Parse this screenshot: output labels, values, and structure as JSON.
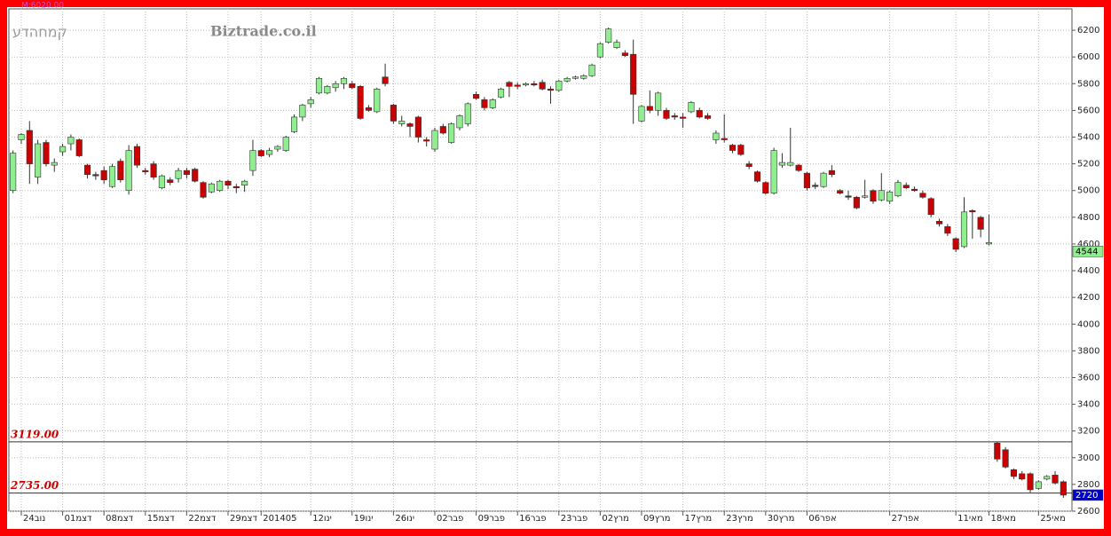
{
  "chart_data": {
    "type": "candlestick",
    "title": "קמחהדע",
    "subtitle": "Biztrade.co.il",
    "annotation": "M:6020.00",
    "categories": [
      null,
      "24נוב",
      null,
      null,
      null,
      null,
      "01דצמ",
      null,
      null,
      null,
      null,
      "08דצמ",
      null,
      null,
      null,
      null,
      "15דצמ",
      null,
      null,
      null,
      null,
      "22דצמ",
      null,
      null,
      null,
      null,
      "29דצמ",
      null,
      null,
      null,
      "201405",
      null,
      null,
      null,
      null,
      null,
      "12ינו",
      null,
      null,
      null,
      null,
      "19ינו",
      null,
      null,
      null,
      null,
      "26ינו",
      null,
      null,
      null,
      null,
      "02פבר",
      null,
      null,
      null,
      null,
      "09פבר",
      null,
      null,
      null,
      null,
      "16פבר",
      null,
      null,
      null,
      null,
      "23פבר",
      null,
      null,
      null,
      null,
      "02מרץ",
      null,
      null,
      null,
      null,
      "09מרץ",
      null,
      null,
      null,
      null,
      "17מרץ",
      null,
      null,
      null,
      null,
      "23מרץ",
      null,
      null,
      null,
      null,
      "30מרץ",
      null,
      null,
      null,
      null,
      "06אפר",
      null,
      null,
      null,
      null,
      null,
      null,
      null,
      null,
      null,
      "27אפר",
      null,
      null,
      null,
      null,
      null,
      null,
      null,
      "11מאי",
      null,
      null,
      null,
      "18מאי",
      null,
      null,
      null,
      null,
      null,
      "25מאי",
      null,
      null,
      null
    ],
    "open": [
      5000,
      5380,
      5450,
      5100,
      5360,
      5190,
      5290,
      5350,
      5380,
      5190,
      5120,
      5150,
      5030,
      5220,
      5000,
      5330,
      5150,
      5200,
      5020,
      5080,
      5090,
      5150,
      5160,
      5060,
      4990,
      5000,
      5070,
      5030,
      5040,
      5150,
      5300,
      5270,
      5310,
      5300,
      5440,
      5550,
      5650,
      5730,
      5730,
      5770,
      5800,
      5800,
      5780,
      5620,
      5590,
      5850,
      5640,
      5500,
      5500,
      5550,
      5380,
      5310,
      5480,
      5360,
      5470,
      5500,
      5720,
      5680,
      5620,
      5700,
      5810,
      5790,
      5790,
      5800,
      5810,
      5760,
      5750,
      5820,
      5840,
      5840,
      5860,
      6000,
      6110,
      6070,
      6030,
      6020,
      5520,
      5630,
      5600,
      5600,
      5560,
      5550,
      5590,
      5600,
      5560,
      5380,
      5390,
      5340,
      5340,
      5200,
      5140,
      5060,
      4980,
      5190,
      5190,
      5190,
      5130,
      5040,
      5030,
      5150,
      5000,
      4960,
      4950,
      4950,
      5000,
      4930,
      4920,
      4960,
      5040,
      5010,
      4980,
      4940,
      4770,
      4730,
      4640,
      4580,
      4850,
      4800,
      4600,
      3110,
      3060,
      2910,
      2880,
      2880,
      2770,
      2840,
      2870,
      2820
    ],
    "high": [
      5300,
      5430,
      5520,
      5380,
      5380,
      5240,
      5350,
      5420,
      5390,
      5200,
      5140,
      5180,
      5200,
      5240,
      5340,
      5350,
      5170,
      5220,
      5120,
      5100,
      5170,
      5170,
      5170,
      5070,
      5060,
      5080,
      5080,
      5050,
      5080,
      5380,
      5310,
      5320,
      5340,
      5410,
      5570,
      5650,
      5700,
      5850,
      5790,
      5820,
      5850,
      5820,
      5790,
      5640,
      5770,
      5950,
      5650,
      5560,
      5510,
      5560,
      5400,
      5470,
      5500,
      5510,
      5570,
      5660,
      5740,
      5700,
      5690,
      5770,
      5820,
      5810,
      5810,
      5820,
      5830,
      5780,
      5830,
      5850,
      5860,
      5870,
      5950,
      6110,
      6220,
      6130,
      6050,
      6130,
      5640,
      5750,
      5740,
      5620,
      5580,
      5580,
      5670,
      5620,
      5580,
      5450,
      5570,
      5350,
      5350,
      5220,
      5150,
      5070,
      5320,
      5280,
      5470,
      5200,
      5140,
      5060,
      5140,
      5190,
      5010,
      5000,
      4960,
      5080,
      5010,
      5130,
      5000,
      5080,
      5060,
      5030,
      5000,
      4950,
      4790,
      4750,
      4650,
      4950,
      4860,
      4810,
      4820,
      3120,
      3080,
      2920,
      2900,
      2890,
      2830,
      2870,
      2900,
      2830
    ],
    "low": [
      4980,
      5350,
      5050,
      5050,
      5180,
      5140,
      5260,
      5300,
      5250,
      5090,
      5080,
      5050,
      5020,
      5060,
      4970,
      5170,
      5120,
      5080,
      5010,
      5040,
      5060,
      5090,
      5060,
      4940,
      4980,
      4990,
      5010,
      4980,
      4990,
      5110,
      5250,
      5250,
      5290,
      5290,
      5430,
      5520,
      5620,
      5720,
      5720,
      5740,
      5760,
      5760,
      5530,
      5590,
      5580,
      5780,
      5500,
      5480,
      5400,
      5360,
      5330,
      5290,
      5420,
      5350,
      5450,
      5480,
      5680,
      5600,
      5610,
      5690,
      5700,
      5760,
      5780,
      5780,
      5750,
      5650,
      5740,
      5810,
      5830,
      5830,
      5850,
      5990,
      6100,
      6060,
      6000,
      5500,
      5510,
      5580,
      5560,
      5530,
      5530,
      5470,
      5580,
      5540,
      5530,
      5350,
      5360,
      5280,
      5260,
      5160,
      5060,
      4970,
      4970,
      5170,
      5180,
      5140,
      5000,
      5010,
      5020,
      5100,
      4970,
      4930,
      4860,
      4940,
      4900,
      4920,
      4900,
      4950,
      5010,
      4990,
      4940,
      4800,
      4730,
      4660,
      4540,
      4570,
      4640,
      4650,
      4590,
      2970,
      2920,
      2840,
      2830,
      2740,
      2760,
      2830,
      2800,
      2700
    ],
    "close": [
      5280,
      5420,
      5200,
      5350,
      5200,
      5210,
      5330,
      5400,
      5260,
      5120,
      5110,
      5080,
      5180,
      5080,
      5300,
      5190,
      5140,
      5100,
      5110,
      5060,
      5150,
      5120,
      5070,
      4950,
      5050,
      5070,
      5040,
      5020,
      5070,
      5300,
      5260,
      5300,
      5330,
      5400,
      5550,
      5640,
      5680,
      5840,
      5780,
      5800,
      5840,
      5770,
      5540,
      5600,
      5760,
      5800,
      5520,
      5520,
      5480,
      5400,
      5370,
      5450,
      5430,
      5500,
      5560,
      5650,
      5690,
      5620,
      5680,
      5760,
      5780,
      5780,
      5800,
      5790,
      5760,
      5750,
      5820,
      5840,
      5850,
      5860,
      5940,
      6100,
      6210,
      6110,
      6010,
      5720,
      5630,
      5600,
      5730,
      5540,
      5550,
      5540,
      5660,
      5550,
      5540,
      5430,
      5380,
      5300,
      5270,
      5180,
      5070,
      4980,
      5300,
      5210,
      5210,
      5150,
      5020,
      5030,
      5130,
      5120,
      4980,
      4950,
      4870,
      4960,
      4920,
      5000,
      4990,
      5060,
      5020,
      5000,
      4950,
      4820,
      4750,
      4680,
      4560,
      4840,
      4840,
      4710,
      4610,
      2990,
      2930,
      2860,
      2840,
      2760,
      2820,
      2860,
      2810,
      2720
    ],
    "up_color": "#90ee90",
    "down_color": "#cc0000",
    "ylim": [
      2600,
      6360
    ],
    "yticks": [
      2600,
      2800,
      3000,
      3200,
      3400,
      3600,
      3800,
      4000,
      4200,
      4400,
      4600,
      4800,
      5000,
      5200,
      5400,
      5600,
      5800,
      6000,
      6200
    ],
    "grid": true,
    "levels": [
      {
        "value": 3119,
        "label": "3119.00"
      },
      {
        "value": 2735,
        "label": "2735.00"
      }
    ],
    "price_tags": [
      {
        "value": 4544,
        "color": "#90ee90"
      },
      {
        "value": 2720,
        "color": "#0000cc"
      }
    ]
  }
}
